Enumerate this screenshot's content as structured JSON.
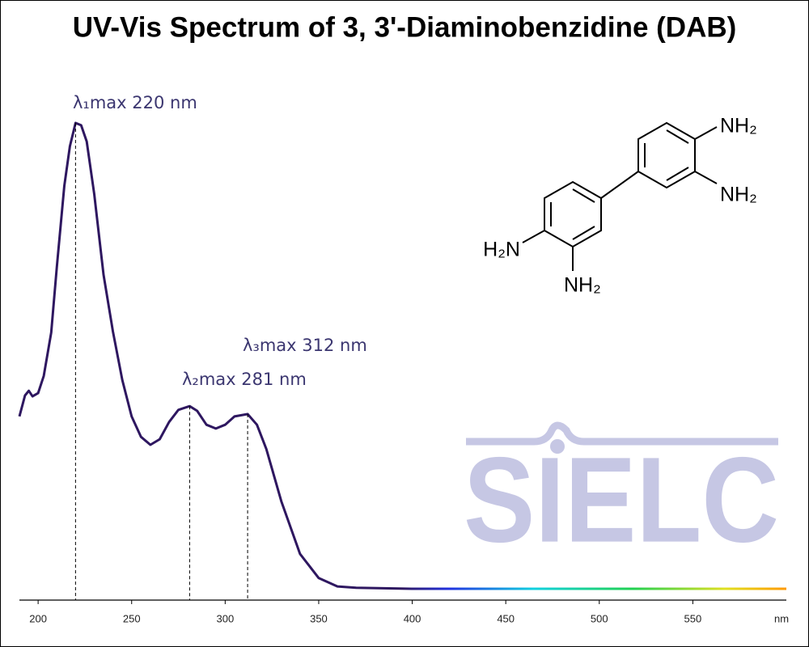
{
  "chart_data": {
    "type": "line",
    "title": "UV-Vis Spectrum of 3, 3'-Diaminobenzidine (DAB)",
    "x_label": "nm",
    "x": [
      190,
      193,
      195,
      197,
      200,
      203,
      207,
      210,
      214,
      217,
      220,
      223,
      226,
      230,
      235,
      240,
      245,
      250,
      255,
      260,
      265,
      270,
      275,
      281,
      285,
      290,
      295,
      300,
      305,
      312,
      317,
      322,
      330,
      340,
      350,
      360,
      370,
      400,
      450,
      500,
      550,
      600
    ],
    "series": [
      {
        "color": "#2e1760",
        "values": [
          0.37,
          0.415,
          0.425,
          0.413,
          0.42,
          0.457,
          0.55,
          0.69,
          0.865,
          0.95,
          1.0,
          0.995,
          0.96,
          0.847,
          0.674,
          0.552,
          0.448,
          0.37,
          0.326,
          0.309,
          0.321,
          0.358,
          0.384,
          0.392,
          0.382,
          0.352,
          0.344,
          0.352,
          0.37,
          0.375,
          0.352,
          0.3,
          0.188,
          0.075,
          0.023,
          0.005,
          0.002,
          0,
          0,
          0,
          0,
          0
        ]
      }
    ],
    "xlim": [
      190,
      600
    ],
    "xticks": [
      200,
      250,
      300,
      350,
      400,
      450,
      500,
      550
    ],
    "ylim": [
      0,
      1
    ],
    "annotations": [
      {
        "text": "λ₁max  220 nm",
        "x": 220
      },
      {
        "text": "λ₂max  281 nm",
        "x": 281
      },
      {
        "text": "λ₃max  312 nm",
        "x": 312
      }
    ],
    "structure_labels": [
      "NH₂",
      "NH₂",
      "H₂N",
      "NH₂"
    ],
    "watermark": "SIELC"
  }
}
